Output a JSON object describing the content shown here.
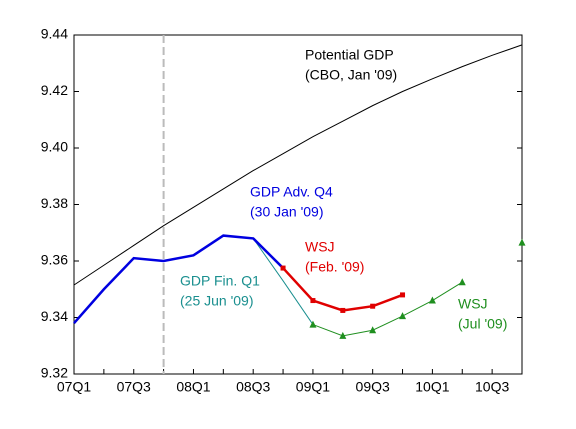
{
  "chart_data": {
    "type": "line",
    "categories": [
      "07Q1",
      null,
      "07Q3",
      null,
      "08Q1",
      null,
      "08Q3",
      null,
      "09Q1",
      null,
      "09Q3",
      null,
      "10Q1",
      null,
      "10Q3",
      null
    ],
    "ylim": [
      9.32,
      9.44
    ],
    "yticks": [
      9.32,
      9.34,
      9.36,
      9.38,
      {
        "value": 9.4,
        "label": "9.40"
      },
      9.42,
      9.44
    ],
    "series": [
      {
        "name": "Potential GDP",
        "note": "(CBO, Jan '09)",
        "color": "#000000",
        "width": 1,
        "marker": "none",
        "values": [
          9.3515,
          9.3585,
          9.3655,
          9.3725,
          9.379,
          9.3855,
          9.392,
          9.398,
          9.404,
          9.4095,
          9.415,
          9.42,
          9.4245,
          9.4288,
          9.4328,
          9.4365
        ]
      },
      {
        "name": "GDP Fin. Q1",
        "note": "(25 Jun '09)",
        "color": "#1a8f8f",
        "width": 1,
        "marker": "none",
        "values": [
          null,
          null,
          null,
          null,
          null,
          null,
          9.368,
          9.353,
          9.3375,
          null,
          null,
          null,
          null,
          null,
          null,
          null
        ]
      },
      {
        "name": "GDP Adv. Q4",
        "note": "(30 Jan '09)",
        "color": "#0000e0",
        "width": 2.5,
        "marker": "none",
        "values": [
          9.338,
          9.35,
          9.361,
          9.36,
          9.362,
          9.369,
          9.368,
          9.3575,
          null,
          null,
          null,
          null,
          null,
          null,
          null,
          null
        ]
      },
      {
        "name": "WSJ",
        "note": "(Feb. '09)",
        "color": "#e00000",
        "width": 2.5,
        "marker": "square",
        "values": [
          null,
          null,
          null,
          null,
          null,
          null,
          null,
          9.3575,
          9.346,
          9.3425,
          9.344,
          9.348,
          null,
          null,
          null,
          null
        ]
      },
      {
        "name": "WSJ",
        "note": "(Jul '09)",
        "color": "#1f8f1f",
        "width": 1,
        "marker": "triangle",
        "values": [
          null,
          null,
          null,
          null,
          null,
          null,
          null,
          null,
          9.3375,
          9.3335,
          9.3355,
          9.3405,
          9.346,
          9.3525,
          null,
          9.3665
        ]
      }
    ]
  }
}
